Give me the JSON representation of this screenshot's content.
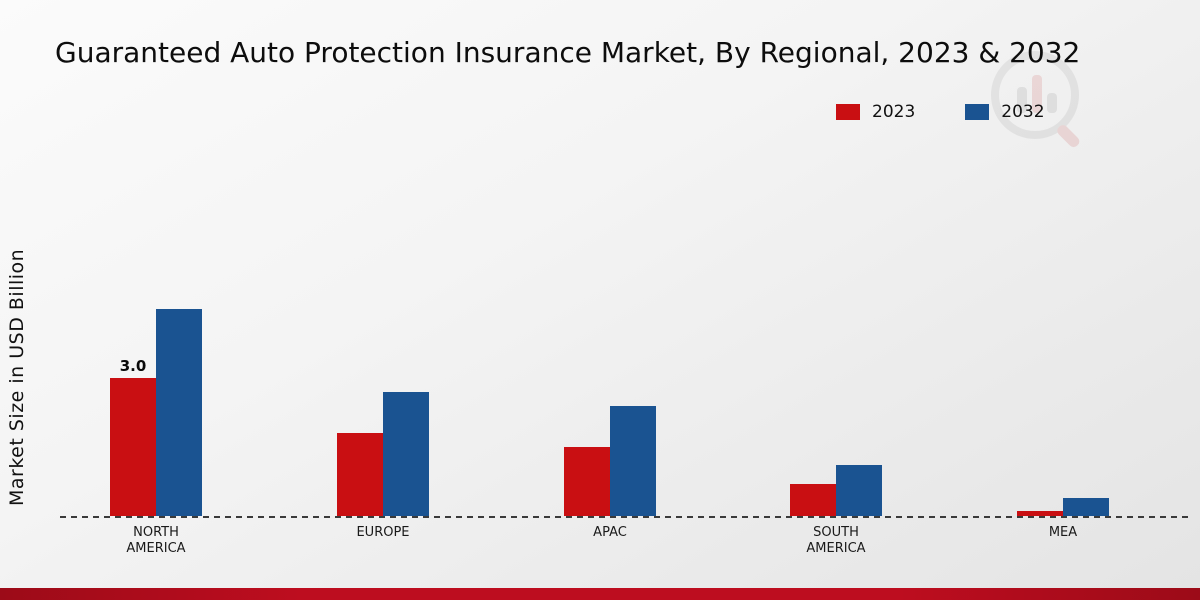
{
  "title": "Guaranteed Auto Protection Insurance Market, By Regional, 2023 & 2032",
  "ylabel": "Market Size in USD Billion",
  "legend": [
    {
      "label": "2023",
      "color": "#c90f12"
    },
    {
      "label": "2032",
      "color": "#1a5391"
    }
  ],
  "chart_data": {
    "type": "bar",
    "title": "Guaranteed Auto Protection Insurance Market, By Regional, 2023 & 2032",
    "xlabel": "",
    "ylabel": "Market Size in USD Billion",
    "ylim": [
      0,
      5
    ],
    "grid": false,
    "legend_position": "top-right",
    "categories": [
      "NORTH AMERICA",
      "EUROPE",
      "APAC",
      "SOUTH AMERICA",
      "MEA"
    ],
    "series": [
      {
        "name": "2023",
        "color": "#c90f12",
        "values": [
          3.0,
          1.8,
          1.5,
          0.7,
          0.1
        ]
      },
      {
        "name": "2032",
        "color": "#1a5391",
        "values": [
          4.5,
          2.7,
          2.4,
          1.1,
          0.4
        ]
      }
    ],
    "annotations": [
      {
        "series": "2023",
        "category": "NORTH AMERICA",
        "text": "3.0"
      }
    ]
  }
}
